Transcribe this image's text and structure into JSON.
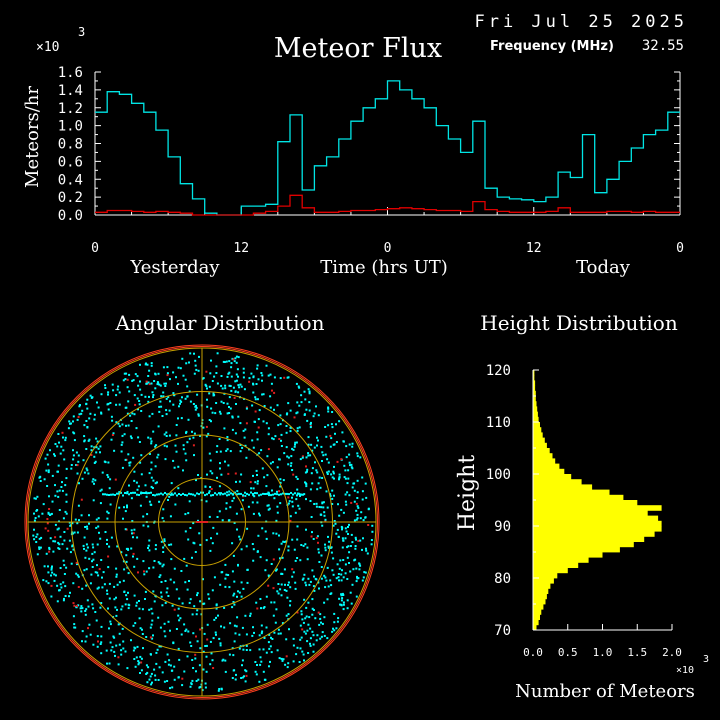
{
  "header": {
    "date": "Fri Jul 25 2025",
    "frequency_label": "Frequency (MHz)",
    "frequency_value": "32.55"
  },
  "colors": {
    "background": "#000000",
    "flux_total": "#00e5e5",
    "flux_other": "#e00000",
    "polar_dots": "#00ffff",
    "polar_grid": "#c8a000",
    "polar_rim": "#ff4020",
    "height_bars": "#ffff00",
    "text": "#ffffff"
  },
  "chart_data": [
    {
      "type": "line",
      "title": "Meteor Flux",
      "ylabel": "Meteors/hr",
      "xlabel": "Time (hrs UT)",
      "y_multiplier": "×10",
      "y_multiplier_exp": "3",
      "ylim": [
        0,
        1.6
      ],
      "xlim": [
        0,
        48
      ],
      "yticks": [
        "0.0",
        "0.2",
        "0.4",
        "0.6",
        "0.8",
        "1.0",
        "1.2",
        "1.4",
        "1.6"
      ],
      "xticks": [
        {
          "x": 0,
          "label": "0"
        },
        {
          "x": 12,
          "label": "12"
        },
        {
          "x": 24,
          "label": "0"
        },
        {
          "x": 36,
          "label": "12"
        },
        {
          "x": 48,
          "label": "0"
        }
      ],
      "period_labels": [
        "Yesterday",
        "Today"
      ],
      "step": "hourly",
      "series": [
        {
          "values": [
            1.15,
            1.38,
            1.35,
            1.25,
            1.15,
            0.95,
            0.65,
            0.35,
            0.18,
            0.02,
            0.0,
            0.0,
            0.1,
            0.1,
            0.12,
            0.82,
            1.12,
            0.28,
            0.55,
            0.65,
            0.85,
            1.05,
            1.2,
            1.3,
            1.5,
            1.4,
            1.3,
            1.2,
            1.0,
            0.85,
            0.7,
            1.05,
            0.3,
            0.2,
            0.18,
            0.17,
            0.15,
            0.2,
            0.48,
            0.42,
            0.9,
            0.25,
            0.4,
            0.6,
            0.75,
            0.9,
            0.95,
            1.15
          ]
        },
        {
          "values": [
            0.03,
            0.05,
            0.05,
            0.04,
            0.03,
            0.04,
            0.03,
            0.02,
            0.0,
            0.0,
            0.0,
            0.0,
            0.0,
            0.02,
            0.04,
            0.1,
            0.22,
            0.08,
            0.03,
            0.03,
            0.04,
            0.05,
            0.05,
            0.06,
            0.07,
            0.08,
            0.07,
            0.06,
            0.05,
            0.05,
            0.04,
            0.15,
            0.06,
            0.04,
            0.03,
            0.03,
            0.03,
            0.04,
            0.08,
            0.03,
            0.03,
            0.03,
            0.04,
            0.04,
            0.03,
            0.04,
            0.03,
            0.03
          ]
        }
      ]
    },
    {
      "type": "scatter",
      "title": "Angular Distribution",
      "note": "polar sky map of meteor echo directions"
    },
    {
      "type": "bar",
      "orientation": "horizontal",
      "title": "Height Distribution",
      "ylabel": "Height",
      "xlabel": "Number of Meteors",
      "x_multiplier": "×10",
      "x_multiplier_exp": "3",
      "xlim": [
        0,
        2.0
      ],
      "xticks": [
        "0.0",
        "0.5",
        "1.0",
        "1.5",
        "2.0"
      ],
      "ylim": [
        70,
        120
      ],
      "yticks": [
        "70",
        "80",
        "90",
        "100",
        "110",
        "120"
      ],
      "heights": [
        70,
        71,
        72,
        73,
        74,
        75,
        76,
        77,
        78,
        79,
        80,
        81,
        82,
        83,
        84,
        85,
        86,
        87,
        88,
        89,
        90,
        91,
        92,
        93,
        94,
        95,
        96,
        97,
        98,
        99,
        100,
        101,
        102,
        103,
        104,
        105,
        106,
        107,
        108,
        109,
        110,
        111,
        112,
        113,
        114,
        115,
        116,
        117,
        118,
        119
      ],
      "values": [
        0.05,
        0.08,
        0.1,
        0.12,
        0.15,
        0.18,
        0.2,
        0.22,
        0.25,
        0.3,
        0.35,
        0.5,
        0.65,
        0.8,
        1.0,
        1.25,
        1.45,
        1.6,
        1.75,
        1.85,
        1.85,
        1.8,
        1.65,
        1.85,
        1.5,
        1.3,
        1.1,
        0.85,
        0.7,
        0.55,
        0.45,
        0.38,
        0.32,
        0.28,
        0.24,
        0.2,
        0.17,
        0.14,
        0.12,
        0.1,
        0.08,
        0.07,
        0.06,
        0.05,
        0.04,
        0.04,
        0.03,
        0.03,
        0.02,
        0.02
      ]
    }
  ]
}
